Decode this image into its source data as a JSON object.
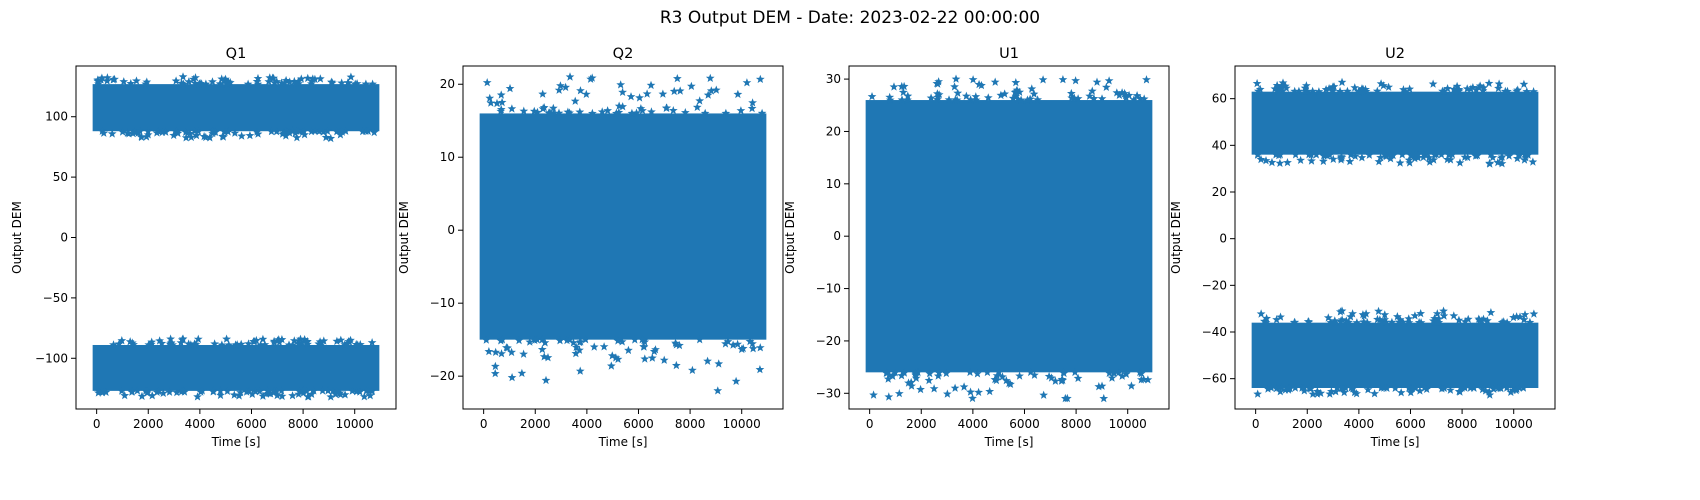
{
  "suptitle": "R3 Output DEM - Date: 2023-02-22 00:00:00",
  "chart_data": [
    {
      "type": "scatter",
      "marker": "star",
      "color": "#1f77b4",
      "title": "Q1",
      "xlabel": "Time [s]",
      "ylabel": "Output DEM",
      "xlim": [
        -800,
        11600
      ],
      "ylim": [
        -142,
        142
      ],
      "xticks": [
        0,
        2000,
        4000,
        6000,
        8000,
        10000
      ],
      "xtick_labels": [
        "0",
        "2000",
        "4000",
        "6000",
        "8000",
        "10000"
      ],
      "yticks": [
        -100,
        -50,
        0,
        50,
        100
      ],
      "ytick_labels": [
        "−100",
        "−50",
        "0",
        "50",
        "100"
      ],
      "x_range": [
        0,
        10800
      ],
      "bands": [
        {
          "low": 88,
          "high": 127,
          "min": 82,
          "max": 133
        },
        {
          "low": -127,
          "high": -89,
          "min": -132,
          "max": -84
        }
      ]
    },
    {
      "type": "scatter",
      "marker": "star",
      "color": "#1f77b4",
      "title": "Q2",
      "xlabel": "Time [s]",
      "ylabel": "Output DEM",
      "xlim": [
        -800,
        11600
      ],
      "ylim": [
        -24.5,
        22.5
      ],
      "xticks": [
        0,
        2000,
        4000,
        6000,
        8000,
        10000
      ],
      "xtick_labels": [
        "0",
        "2000",
        "4000",
        "6000",
        "8000",
        "10000"
      ],
      "yticks": [
        -20,
        -10,
        0,
        10,
        20
      ],
      "ytick_labels": [
        "−20",
        "−10",
        "0",
        "10",
        "20"
      ],
      "x_range": [
        0,
        10800
      ],
      "bands": [
        {
          "low": -15,
          "high": 16,
          "min": -22,
          "max": 21
        }
      ]
    },
    {
      "type": "scatter",
      "marker": "star",
      "color": "#1f77b4",
      "title": "U1",
      "xlabel": "Time [s]",
      "ylabel": "Output DEM",
      "xlim": [
        -800,
        11600
      ],
      "ylim": [
        -33,
        32.5
      ],
      "xticks": [
        0,
        2000,
        4000,
        6000,
        8000,
        10000
      ],
      "xtick_labels": [
        "0",
        "2000",
        "4000",
        "6000",
        "8000",
        "10000"
      ],
      "yticks": [
        -30,
        -20,
        -10,
        0,
        10,
        20,
        30
      ],
      "ytick_labels": [
        "−30",
        "−20",
        "−10",
        "0",
        "10",
        "20",
        "30"
      ],
      "x_range": [
        0,
        10800
      ],
      "bands": [
        {
          "low": -26,
          "high": 26,
          "min": -31,
          "max": 30
        }
      ]
    },
    {
      "type": "scatter",
      "marker": "star",
      "color": "#1f77b4",
      "title": "U2",
      "xlabel": "Time [s]",
      "ylabel": "Output DEM",
      "xlim": [
        -800,
        11600
      ],
      "ylim": [
        -73,
        74
      ],
      "xticks": [
        0,
        2000,
        4000,
        6000,
        8000,
        10000
      ],
      "xtick_labels": [
        "0",
        "2000",
        "4000",
        "6000",
        "8000",
        "10000"
      ],
      "yticks": [
        -60,
        -40,
        -20,
        0,
        20,
        40,
        60
      ],
      "ytick_labels": [
        "−60",
        "−40",
        "−20",
        "0",
        "20",
        "40",
        "60"
      ],
      "x_range": [
        0,
        10800
      ],
      "bands": [
        {
          "low": 36,
          "high": 63,
          "min": 32,
          "max": 67
        },
        {
          "low": -64,
          "high": -36,
          "min": -67,
          "max": -31
        }
      ]
    }
  ]
}
